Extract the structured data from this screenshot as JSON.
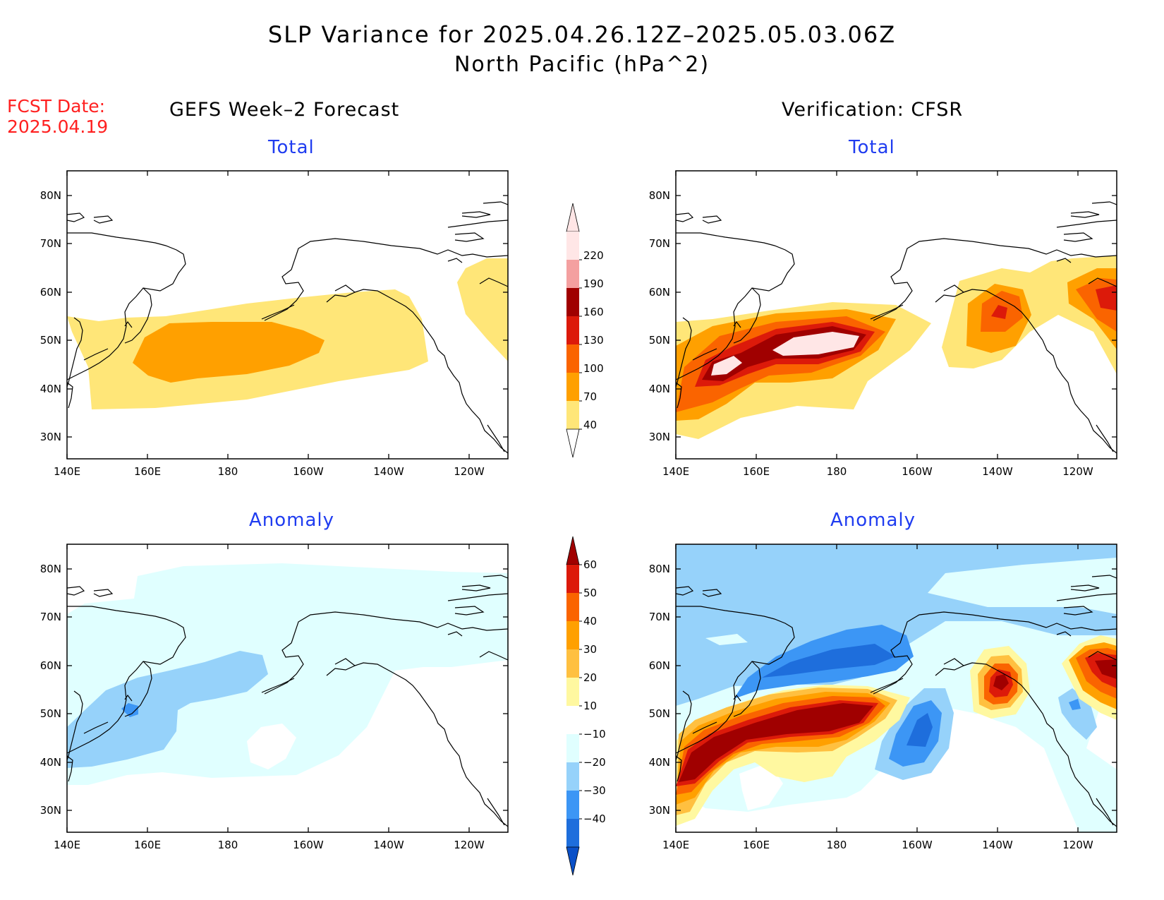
{
  "title": "SLP Variance for 2025.04.26.12Z–2025.05.03.06Z",
  "subtitle": "North Pacific (hPa^2)",
  "forecast_date": {
    "label": "FCST Date:",
    "value": "2025.04.19"
  },
  "columns": {
    "left": "GEFS Week–2 Forecast",
    "right": "Verification: CFSR"
  },
  "panels": {
    "total_left": "Total",
    "total_right": "Total",
    "anomaly_left": "Anomaly",
    "anomaly_right": "Anomaly"
  },
  "axes": {
    "lon_labels": [
      "140E",
      "160E",
      "180",
      "160W",
      "140W",
      "120W"
    ],
    "lat_labels": [
      "80N",
      "70N",
      "60N",
      "50N",
      "40N",
      "30N"
    ]
  },
  "colorbars": {
    "total": {
      "labels": [
        "220",
        "190",
        "160",
        "130",
        "100",
        "70",
        "40"
      ],
      "colors": [
        "#ffe6e6",
        "#f4a0a0",
        "#a00000",
        "#dc1a0a",
        "#fa6400",
        "#ffa000",
        "#ffe678"
      ]
    },
    "anomaly": {
      "labels": [
        "60",
        "50",
        "40",
        "30",
        "20",
        "10",
        "−10",
        "−20",
        "−30",
        "−40"
      ],
      "colors": [
        "#a00000",
        "#dc1a0a",
        "#fa6400",
        "#ffa000",
        "#ffc040",
        "#fff8a0",
        "#ffffff",
        "#e0ffff",
        "#96d2fa",
        "#3c96f5",
        "#1e6edc",
        "#0a50c8"
      ]
    }
  }
}
